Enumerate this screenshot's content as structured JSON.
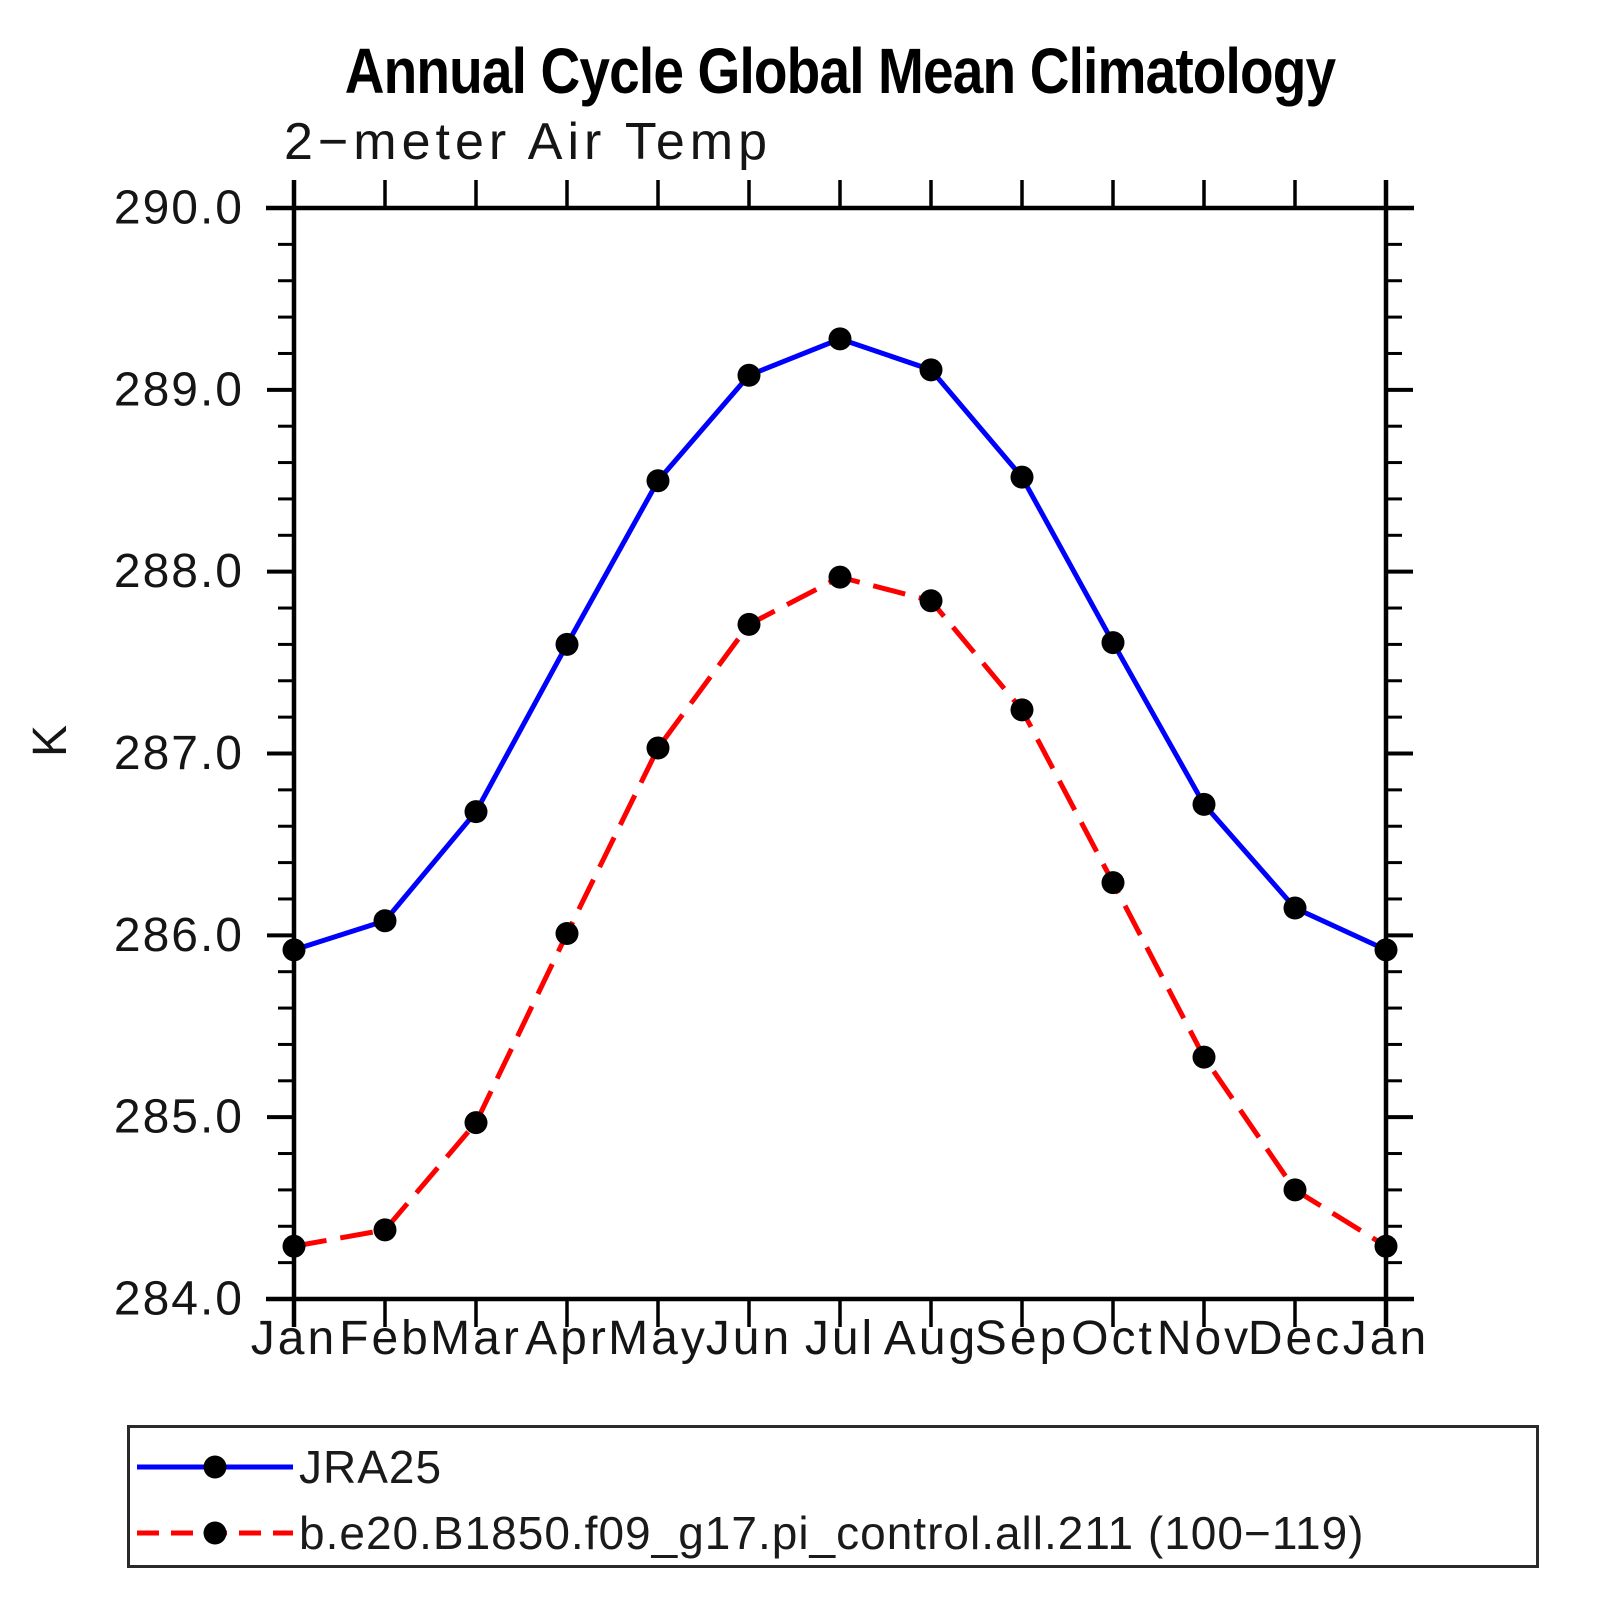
{
  "chart_data": {
    "type": "line",
    "title": "Annual Cycle Global Mean Climatology",
    "subtitle": "2−meter Air Temp",
    "ylabel": "K",
    "categories": [
      "Jan",
      "Feb",
      "Mar",
      "Apr",
      "May",
      "Jun",
      "Jul",
      "Aug",
      "Sep",
      "Oct",
      "Nov",
      "Dec",
      "Jan"
    ],
    "ylim": [
      284.0,
      290.0
    ],
    "ytick_values": [
      290.0,
      289.0,
      288.0,
      287.0,
      286.0,
      285.0,
      284.0
    ],
    "ytick_labels": [
      "290.0",
      "289.0",
      "288.0",
      "287.0",
      "286.0",
      "285.0",
      "284.0"
    ],
    "minor_tick_step": 0.2,
    "grid": false,
    "legend_position": "bottom",
    "series": [
      {
        "name": "JRA25",
        "color": "#0000ff",
        "style": "solid",
        "marker": "circle",
        "marker_color": "#000000",
        "values": [
          285.92,
          286.08,
          286.68,
          287.6,
          288.5,
          289.08,
          289.28,
          289.11,
          288.52,
          287.61,
          286.72,
          286.15,
          285.92
        ]
      },
      {
        "name": "b.e20.B1850.f09_g17.pi_control.all.211 (100−119)",
        "color": "#ff0000",
        "style": "dashed",
        "marker": "circle",
        "marker_color": "#000000",
        "values": [
          284.29,
          284.38,
          284.97,
          286.01,
          287.03,
          287.71,
          287.97,
          287.84,
          287.24,
          286.29,
          285.33,
          284.6,
          284.29
        ]
      }
    ]
  }
}
